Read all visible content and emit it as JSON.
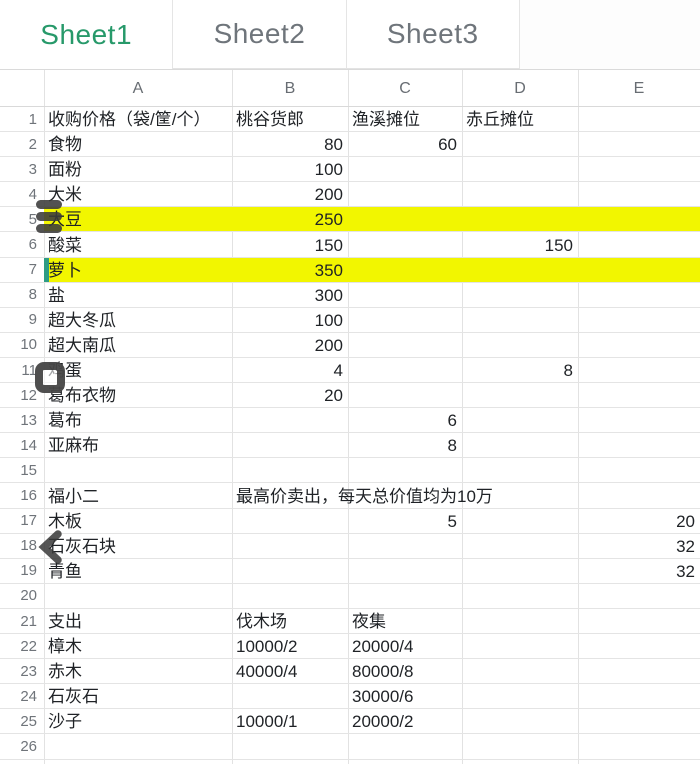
{
  "tabs": [
    {
      "label": "Sheet1",
      "active": true
    },
    {
      "label": "Sheet2",
      "active": false
    },
    {
      "label": "Sheet3",
      "active": false
    }
  ],
  "columns": [
    "A",
    "B",
    "C",
    "D",
    "E"
  ],
  "colors": {
    "active_tab_green": "#27996a",
    "inactive_tab_gray": "#6f757b",
    "highlight_yellow": "#f2f600",
    "cursor_teal": "#2e9c85",
    "overlay_icon_gray": "#3a3a3a"
  },
  "overlay_icons": [
    {
      "name": "layers-icon"
    },
    {
      "name": "stop-icon"
    },
    {
      "name": "chevron-left-icon"
    }
  ],
  "grid": {
    "row_count": 27,
    "highlighted_rows": [
      5,
      7
    ],
    "cursor_row": 7,
    "rows": [
      {
        "n": 1,
        "cells": [
          [
            "A",
            "收购价格（袋/筐/个）",
            "left"
          ],
          [
            "B",
            "桃谷货郎",
            "left"
          ],
          [
            "C",
            "渔溪摊位",
            "left"
          ],
          [
            "D",
            "赤丘摊位",
            "left"
          ]
        ]
      },
      {
        "n": 2,
        "cells": [
          [
            "A",
            "食物",
            "left"
          ],
          [
            "B",
            "80",
            "right"
          ],
          [
            "C",
            "60",
            "right"
          ]
        ]
      },
      {
        "n": 3,
        "cells": [
          [
            "A",
            "面粉",
            "left"
          ],
          [
            "B",
            "100",
            "right"
          ]
        ]
      },
      {
        "n": 4,
        "cells": [
          [
            "A",
            "大米",
            "left"
          ],
          [
            "B",
            "200",
            "right"
          ]
        ]
      },
      {
        "n": 5,
        "highlight": true,
        "cells": [
          [
            "A",
            "大豆",
            "left"
          ],
          [
            "B",
            "250",
            "right"
          ]
        ]
      },
      {
        "n": 6,
        "cells": [
          [
            "A",
            "酸菜",
            "left"
          ],
          [
            "B",
            "150",
            "right"
          ],
          [
            "D",
            "150",
            "right"
          ]
        ]
      },
      {
        "n": 7,
        "highlight": true,
        "cursor": true,
        "cells": [
          [
            "A",
            "萝卜",
            "left"
          ],
          [
            "B",
            "350",
            "right"
          ]
        ]
      },
      {
        "n": 8,
        "cells": [
          [
            "A",
            "盐",
            "left"
          ],
          [
            "B",
            "300",
            "right"
          ]
        ]
      },
      {
        "n": 9,
        "cells": [
          [
            "A",
            "超大冬瓜",
            "left"
          ],
          [
            "B",
            "100",
            "right"
          ]
        ]
      },
      {
        "n": 10,
        "cells": [
          [
            "A",
            "超大南瓜",
            "left"
          ],
          [
            "B",
            "200",
            "right"
          ]
        ]
      },
      {
        "n": 11,
        "cells": [
          [
            "A",
            "鸡蛋",
            "left"
          ],
          [
            "B",
            "4",
            "right"
          ],
          [
            "D",
            "8",
            "right"
          ]
        ]
      },
      {
        "n": 12,
        "cells": [
          [
            "A",
            "葛布衣物",
            "left"
          ],
          [
            "B",
            "20",
            "right"
          ]
        ]
      },
      {
        "n": 13,
        "cells": [
          [
            "A",
            "葛布",
            "left"
          ],
          [
            "C",
            "6",
            "right"
          ]
        ]
      },
      {
        "n": 14,
        "cells": [
          [
            "A",
            "亚麻布",
            "left"
          ],
          [
            "C",
            "8",
            "right"
          ]
        ]
      },
      {
        "n": 15,
        "cells": []
      },
      {
        "n": 16,
        "cells": [
          [
            "A",
            "福小二",
            "left"
          ],
          [
            "B",
            "最高价卖出，每天总价值均为10万",
            "left"
          ]
        ]
      },
      {
        "n": 17,
        "cells": [
          [
            "A",
            "木板",
            "left"
          ],
          [
            "C",
            "5",
            "right"
          ],
          [
            "E",
            "20",
            "right"
          ]
        ]
      },
      {
        "n": 18,
        "cells": [
          [
            "A",
            "石灰石块",
            "left"
          ],
          [
            "E",
            "32",
            "right"
          ]
        ]
      },
      {
        "n": 19,
        "cells": [
          [
            "A",
            "青鱼",
            "left"
          ],
          [
            "E",
            "32",
            "right"
          ]
        ]
      },
      {
        "n": 20,
        "cells": []
      },
      {
        "n": 21,
        "cells": [
          [
            "A",
            "支出",
            "left"
          ],
          [
            "B",
            "伐木场",
            "left"
          ],
          [
            "C",
            "夜集",
            "left"
          ]
        ]
      },
      {
        "n": 22,
        "cells": [
          [
            "A",
            "樟木",
            "left"
          ],
          [
            "B",
            "10000/2",
            "left"
          ],
          [
            "C",
            "20000/4",
            "left"
          ]
        ]
      },
      {
        "n": 23,
        "cells": [
          [
            "A",
            "赤木",
            "left"
          ],
          [
            "B",
            "40000/4",
            "left"
          ],
          [
            "C",
            "80000/8",
            "left"
          ]
        ]
      },
      {
        "n": 24,
        "cells": [
          [
            "A",
            "石灰石",
            "left"
          ],
          [
            "C",
            "30000/6",
            "left"
          ]
        ]
      },
      {
        "n": 25,
        "cells": [
          [
            "A",
            "沙子",
            "left"
          ],
          [
            "B",
            "10000/1",
            "left"
          ],
          [
            "C",
            "20000/2",
            "left"
          ]
        ]
      },
      {
        "n": 26,
        "cells": []
      },
      {
        "n": 27,
        "cells": []
      }
    ]
  }
}
